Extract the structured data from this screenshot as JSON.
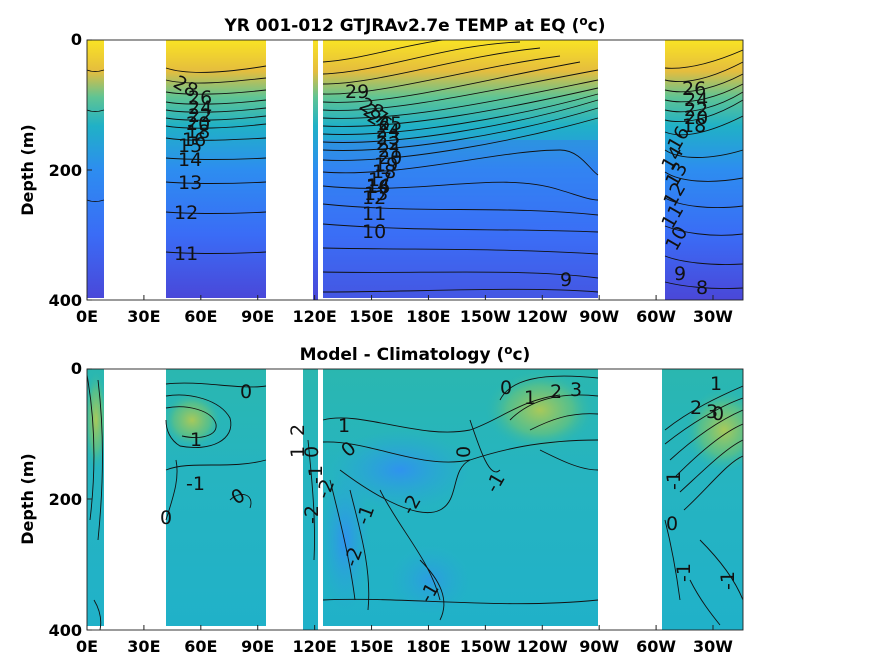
{
  "chart_data": [
    {
      "type": "heatmap",
      "title": "YR 001-012 GTJRAv2.7e TEMP at EQ (",
      "title_sup": "o",
      "title_end": "c)",
      "ylabel": "Depth (m)",
      "xlabel": "",
      "x_ticks": [
        "0E",
        "30E",
        "60E",
        "90E",
        "120E",
        "150E",
        "180E",
        "150W",
        "120W",
        "90W",
        "60W",
        "30W"
      ],
      "y_ticks": [
        "0",
        "200",
        "400"
      ],
      "ylim": [
        400,
        0
      ],
      "contour_labels": [
        "28",
        "26",
        "24",
        "22",
        "20",
        "18",
        "16",
        "15",
        "14",
        "13",
        "12",
        "11",
        "29",
        "28",
        "27",
        "26",
        "25",
        "24",
        "23",
        "22",
        "21",
        "20",
        "19",
        "18",
        "17",
        "16",
        "14",
        "13",
        "12",
        "11",
        "10",
        "9",
        "26",
        "24",
        "22",
        "20",
        "18",
        "16",
        "14",
        "13",
        "12",
        "11",
        "10",
        "9",
        "8"
      ],
      "colormap": "parula",
      "color_range": [
        8,
        29
      ]
    },
    {
      "type": "heatmap",
      "title": "Model - Climatology (",
      "title_sup": "o",
      "title_end": "c)",
      "ylabel": "Depth (m)",
      "xlabel": "",
      "x_ticks": [
        "0E",
        "30E",
        "60E",
        "90E",
        "120E",
        "150E",
        "180E",
        "150W",
        "120W",
        "90W",
        "60W",
        "30W"
      ],
      "y_ticks": [
        "0",
        "200",
        "400"
      ],
      "ylim": [
        400,
        0
      ],
      "contour_labels": [
        "0",
        "1",
        "-1",
        "0",
        "0",
        "2",
        "1",
        "0",
        "-1",
        "1",
        "0",
        "-2",
        "-2",
        "-1",
        "-2",
        "-2",
        "-1",
        "0",
        "-1",
        "0",
        "1",
        "2",
        "3",
        "1",
        "2",
        "3",
        "0",
        "0",
        "-1",
        "-1",
        "-1"
      ],
      "colormap": "parula",
      "color_range": [
        -3,
        3
      ]
    }
  ]
}
